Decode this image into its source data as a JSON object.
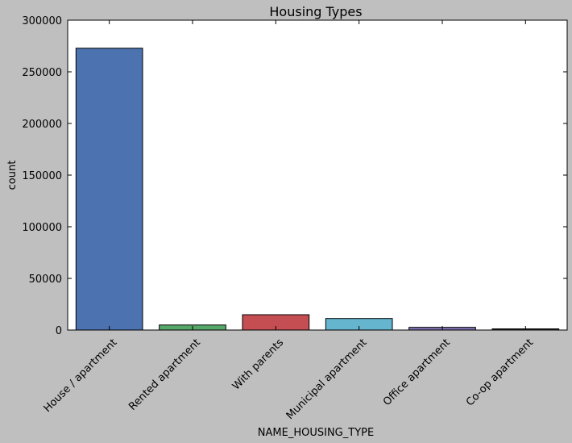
{
  "chart_data": {
    "type": "bar",
    "title": "Housing Types",
    "xlabel": "NAME_HOUSING_TYPE",
    "ylabel": "count",
    "categories": [
      "House / apartment",
      "Rented apartment",
      "With parents",
      "Municipal apartment",
      "Office apartment",
      "Co-op apartment"
    ],
    "values": [
      272868,
      4881,
      14840,
      11183,
      2617,
      1122
    ],
    "colors": [
      "#4c72b0",
      "#55a868",
      "#c44e52",
      "#64b5cd",
      "#8172b2",
      "#2b2b2b"
    ],
    "ylim": [
      0,
      300000
    ],
    "yticks": [
      "0",
      "50000",
      "100000",
      "150000",
      "200000",
      "250000",
      "300000"
    ],
    "grid": false,
    "legend": "none"
  }
}
